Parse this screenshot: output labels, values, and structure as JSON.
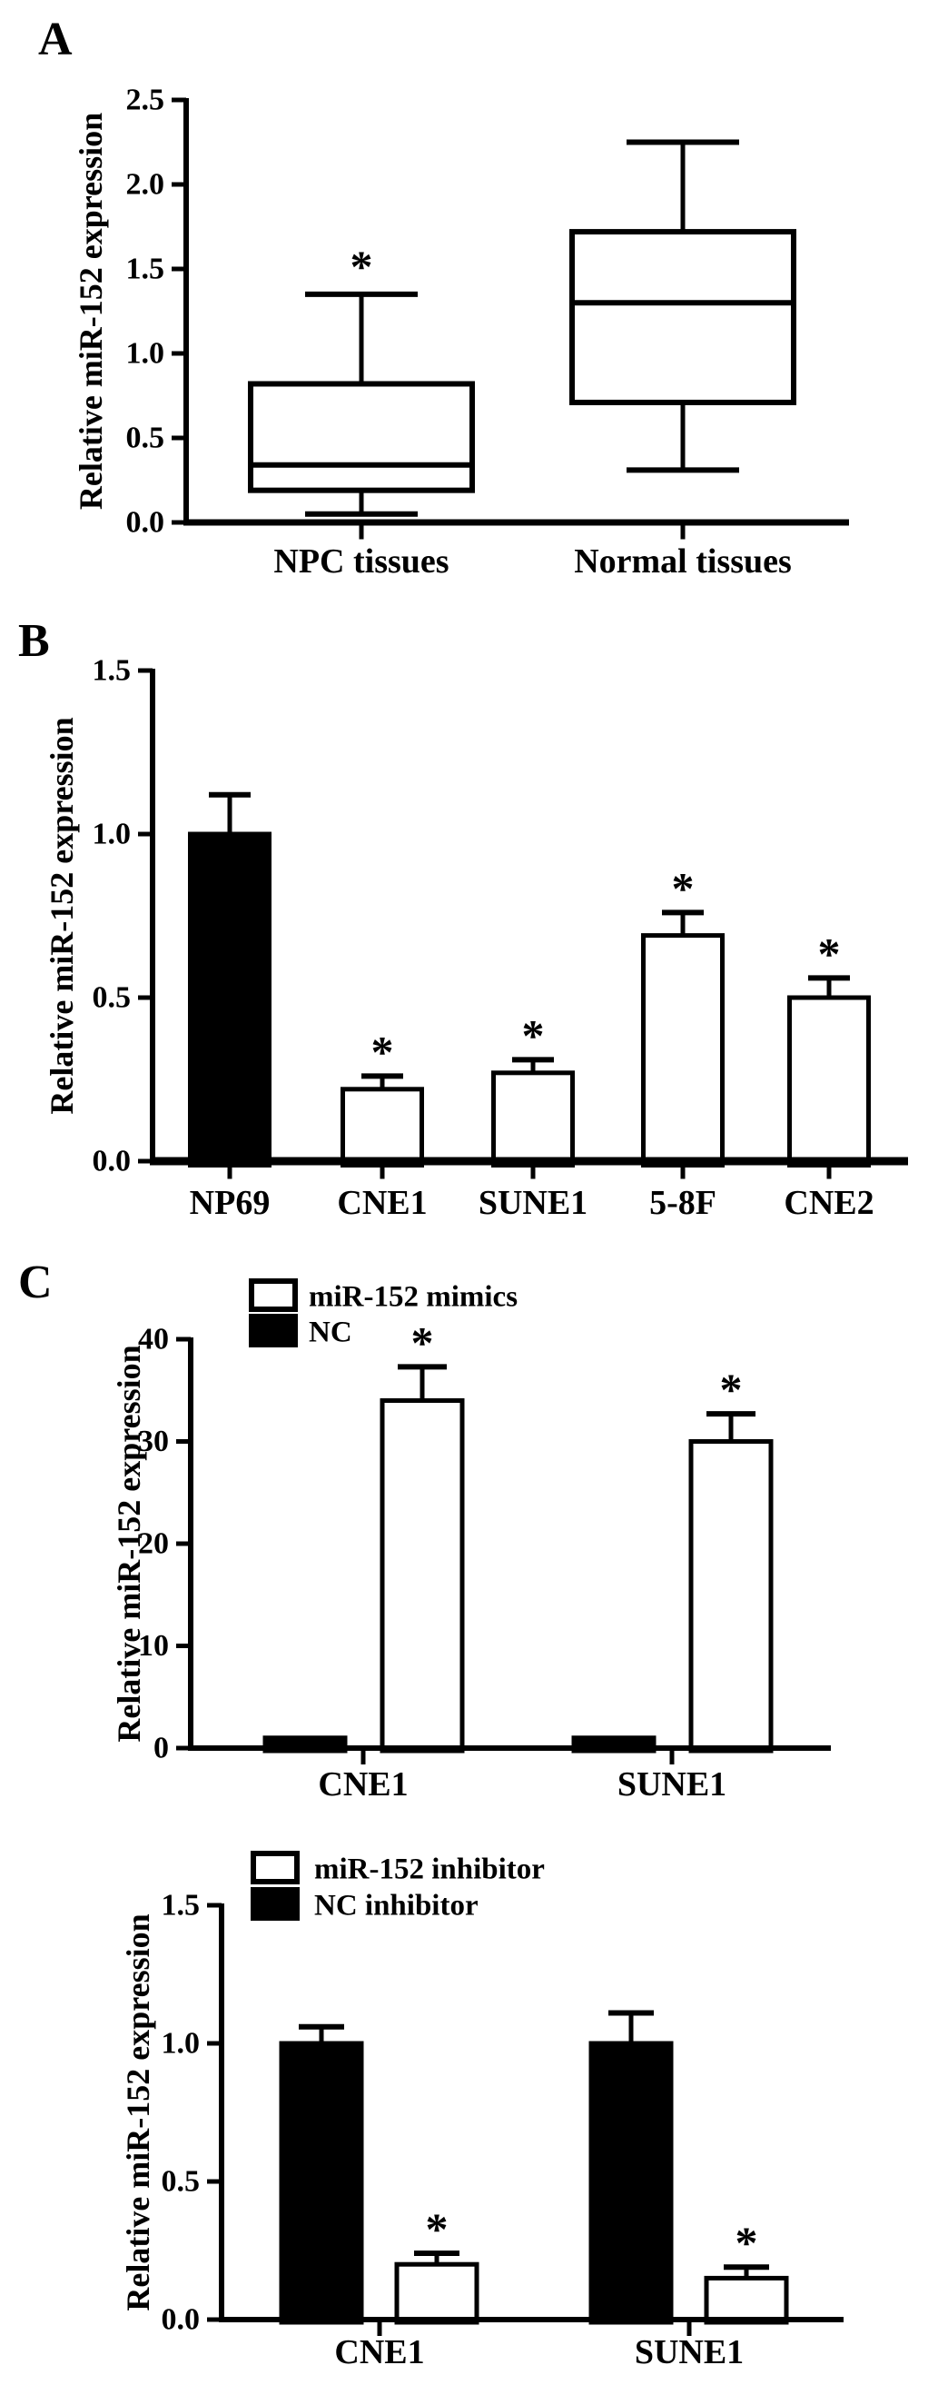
{
  "panels": {
    "a": "A",
    "b": "B",
    "c": "C"
  },
  "colors": {
    "ink": "#000000",
    "paper": "#ffffff"
  },
  "significance_symbol": "*",
  "chart_data": [
    {
      "id": "panel-a",
      "type": "box",
      "panel_label": "A",
      "ylabel": "Relative miR-152 expression",
      "ylim": [
        0,
        2.5
      ],
      "yticks": [
        0,
        0.5,
        1.0,
        1.5,
        2.0,
        2.5
      ],
      "ytick_labels": [
        "0.0",
        "0.5",
        "1.0",
        "1.5",
        "2.0",
        "2.5"
      ],
      "categories": [
        "NPC tissues",
        "Normal tissues"
      ],
      "grid": false,
      "boxes": [
        {
          "category": "NPC tissues",
          "whisker_low": 0.05,
          "q1": 0.19,
          "median": 0.34,
          "q3": 0.82,
          "whisker_high": 1.35,
          "significance": "*"
        },
        {
          "category": "Normal tissues",
          "whisker_low": 0.31,
          "q1": 0.71,
          "median": 1.3,
          "q3": 1.72,
          "whisker_high": 2.25,
          "significance": null
        }
      ]
    },
    {
      "id": "panel-b",
      "type": "bar",
      "panel_label": "B",
      "ylabel": "Relative miR-152 expression",
      "ylim": [
        0,
        1.5
      ],
      "yticks": [
        0,
        0.5,
        1.0,
        1.5
      ],
      "ytick_labels": [
        "0.0",
        "0.5",
        "1.0",
        "1.5"
      ],
      "categories": [
        "NP69",
        "CNE1",
        "SUNE1",
        "5-8F",
        "CNE2"
      ],
      "values": [
        1.0,
        0.22,
        0.27,
        0.69,
        0.5
      ],
      "errors": [
        0.12,
        0.04,
        0.04,
        0.07,
        0.06
      ],
      "bar_fills": [
        "#000000",
        "#ffffff",
        "#ffffff",
        "#ffffff",
        "#ffffff"
      ],
      "significance": [
        null,
        "*",
        "*",
        "*",
        "*"
      ],
      "grid": false
    },
    {
      "id": "panel-c1",
      "type": "bar",
      "grouped": true,
      "panel_label": "C",
      "ylabel": "Relative miR-152 expression",
      "ylim": [
        0,
        40
      ],
      "yticks": [
        0,
        10,
        20,
        30,
        40
      ],
      "ytick_labels": [
        "0",
        "10",
        "20",
        "30",
        "40"
      ],
      "categories": [
        "CNE1",
        "SUNE1"
      ],
      "legend": [
        {
          "label": "miR-152 mimics",
          "fill": "#ffffff"
        },
        {
          "label": "NC",
          "fill": "#000000"
        }
      ],
      "legend_position": "top-left",
      "series": [
        {
          "name": "NC",
          "fill": "#000000",
          "values": [
            1.0,
            1.0
          ],
          "errors": [
            0,
            0
          ],
          "significance": [
            null,
            null
          ]
        },
        {
          "name": "miR-152 mimics",
          "fill": "#ffffff",
          "values": [
            34,
            30
          ],
          "errors": [
            3.3,
            2.7
          ],
          "significance": [
            "*",
            "*"
          ]
        }
      ],
      "grid": false
    },
    {
      "id": "panel-c2",
      "type": "bar",
      "grouped": true,
      "panel_label": "C",
      "ylabel": "Relative miR-152 expression",
      "ylim": [
        0,
        1.5
      ],
      "yticks": [
        0,
        0.5,
        1.0,
        1.5
      ],
      "ytick_labels": [
        "0.0",
        "0.5",
        "1.0",
        "1.5"
      ],
      "categories": [
        "CNE1",
        "SUNE1"
      ],
      "legend": [
        {
          "label": "miR-152 inhibitor",
          "fill": "#ffffff"
        },
        {
          "label": "NC inhibitor",
          "fill": "#000000"
        }
      ],
      "legend_position": "top-left",
      "series": [
        {
          "name": "NC inhibitor",
          "fill": "#000000",
          "values": [
            1.0,
            1.0
          ],
          "errors": [
            0.06,
            0.11
          ],
          "significance": [
            null,
            null
          ]
        },
        {
          "name": "miR-152 inhibitor",
          "fill": "#ffffff",
          "values": [
            0.2,
            0.15
          ],
          "errors": [
            0.04,
            0.04
          ],
          "significance": [
            "*",
            "*"
          ]
        }
      ],
      "grid": false
    }
  ]
}
